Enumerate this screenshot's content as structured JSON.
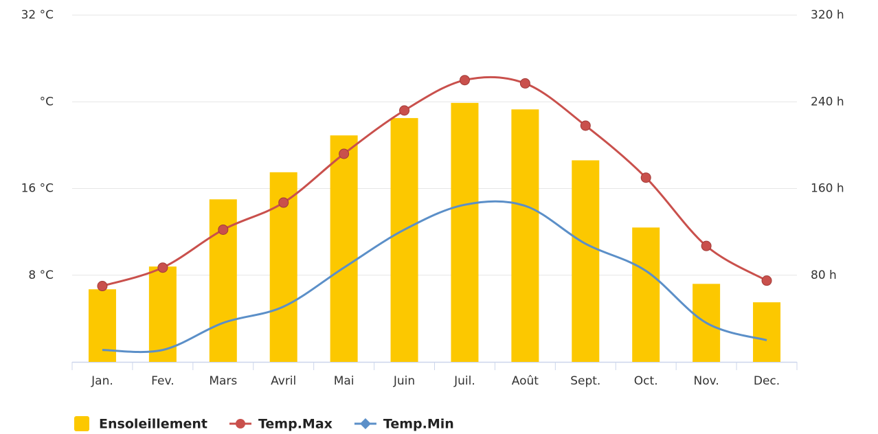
{
  "chart_data": {
    "type": "combo",
    "categories": [
      "Jan.",
      "Fev.",
      "Mars",
      "Avril",
      "Mai",
      "Juin",
      "Juil.",
      "Août",
      "Sept.",
      "Oct.",
      "Nov.",
      "Dec."
    ],
    "series": [
      {
        "name": "Ensoleillement",
        "type": "bar",
        "axis": "y2",
        "color": "#fcc800",
        "values": [
          67,
          88,
          150,
          175,
          209,
          225,
          239,
          233,
          186,
          124,
          72,
          55
        ]
      },
      {
        "name": "Temp.Max",
        "type": "line",
        "marker": "circle",
        "color": "#c9504c",
        "values": [
          7.0,
          8.7,
          12.2,
          14.7,
          19.2,
          23.2,
          26.0,
          25.7,
          21.8,
          17.0,
          10.7,
          7.5
        ]
      },
      {
        "name": "Temp.Min",
        "type": "line",
        "marker": "diamond",
        "color": "#5b8fc8",
        "values": [
          1.1,
          1.1,
          3.6,
          5.1,
          8.7,
          12.2,
          14.5,
          14.4,
          10.9,
          8.4,
          3.6,
          2.0
        ]
      }
    ],
    "ylim": [
      0,
      32
    ],
    "yticks": [
      {
        "value": 8,
        "label": "8 °C"
      },
      {
        "value": 16,
        "label": "16 °C"
      },
      {
        "value": 24,
        "label": "°C"
      },
      {
        "value": 32,
        "label": "32 °C"
      }
    ],
    "y2lim": [
      0,
      320
    ],
    "y2ticks": [
      {
        "value": 80,
        "label": "80 h"
      },
      {
        "value": 160,
        "label": "160 h"
      },
      {
        "value": 240,
        "label": "240 h"
      },
      {
        "value": 320,
        "label": "320 h"
      }
    ],
    "grid": true,
    "legend": "bottom-left"
  }
}
